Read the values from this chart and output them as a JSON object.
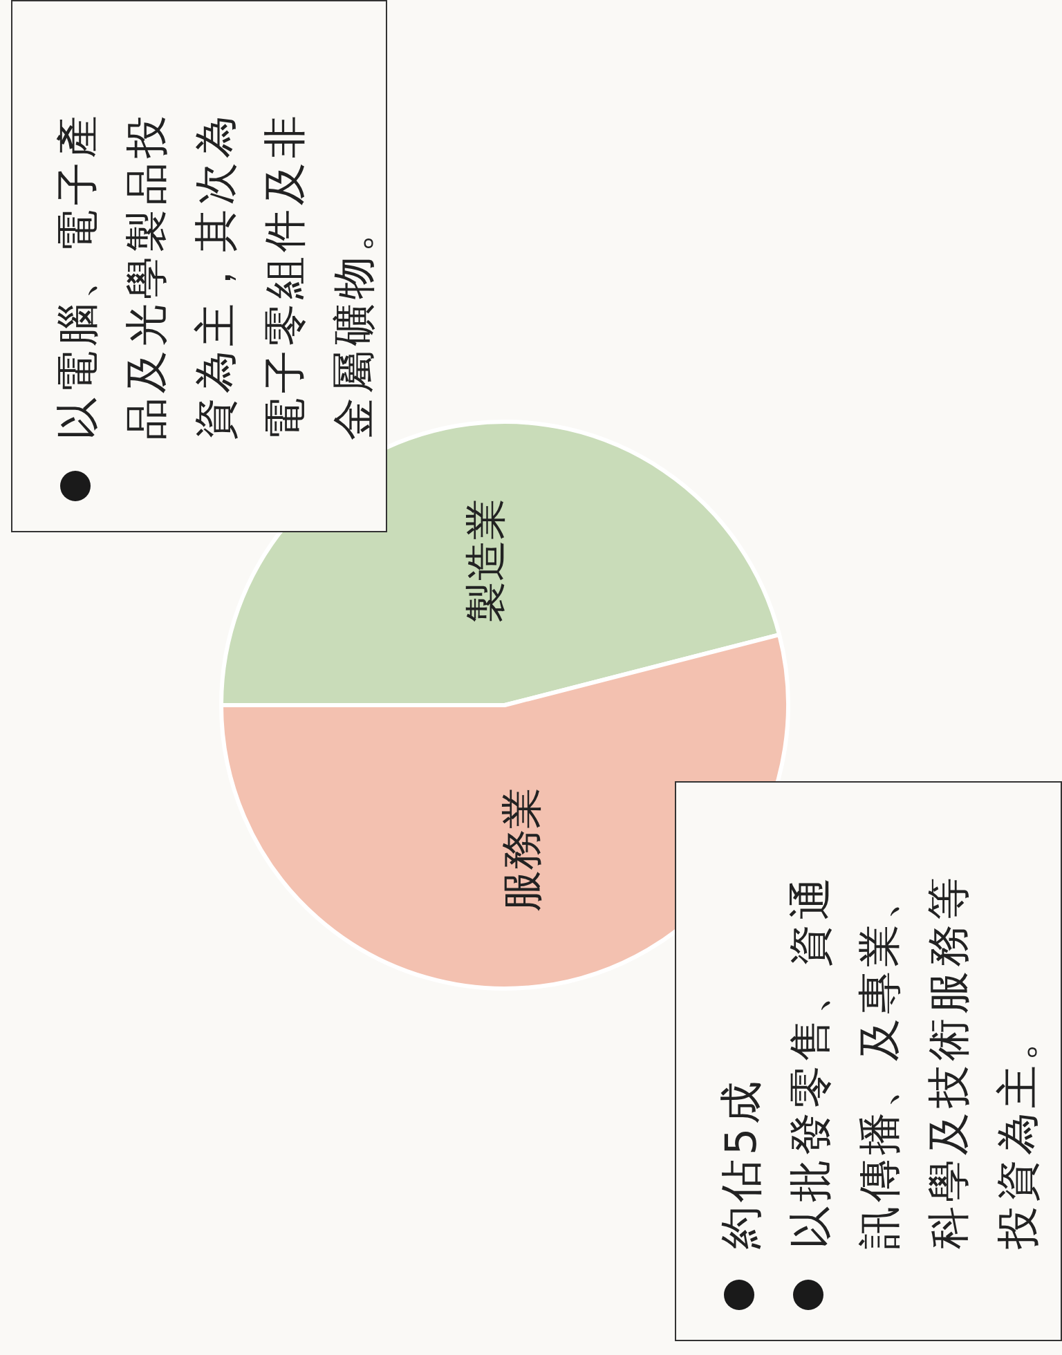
{
  "chart_data": {
    "type": "pie",
    "categories": [
      "製造業",
      "服務業"
    ],
    "values": [
      46,
      54
    ],
    "colors": [
      "#c9dcb9",
      "#f3c1b0"
    ],
    "data_labels": false,
    "legend": false,
    "annotations": [
      "以電腦、電子產品及光學製品投資為主，其次為電子零組件及非金屬礦物。",
      "約佔5成",
      "以批發零售、資通訊傳播、及專業、科學及技術服務等投資為主。"
    ]
  }
}
